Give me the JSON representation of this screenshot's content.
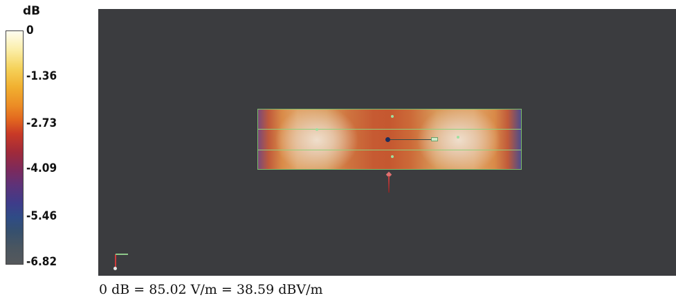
{
  "legend": {
    "unit": "dB",
    "ticks": [
      "0",
      "-1.36",
      "-2.73",
      "-4.09",
      "-5.46",
      "-6.82"
    ]
  },
  "caption": "0 dB = 85.02 V/m = 38.59 dBV/m",
  "colors": {
    "viewport_background": "#3b3c3f",
    "outline": "#7bbf6a",
    "hot": "#f0e2d2",
    "cold": "#4e4c8a"
  }
}
